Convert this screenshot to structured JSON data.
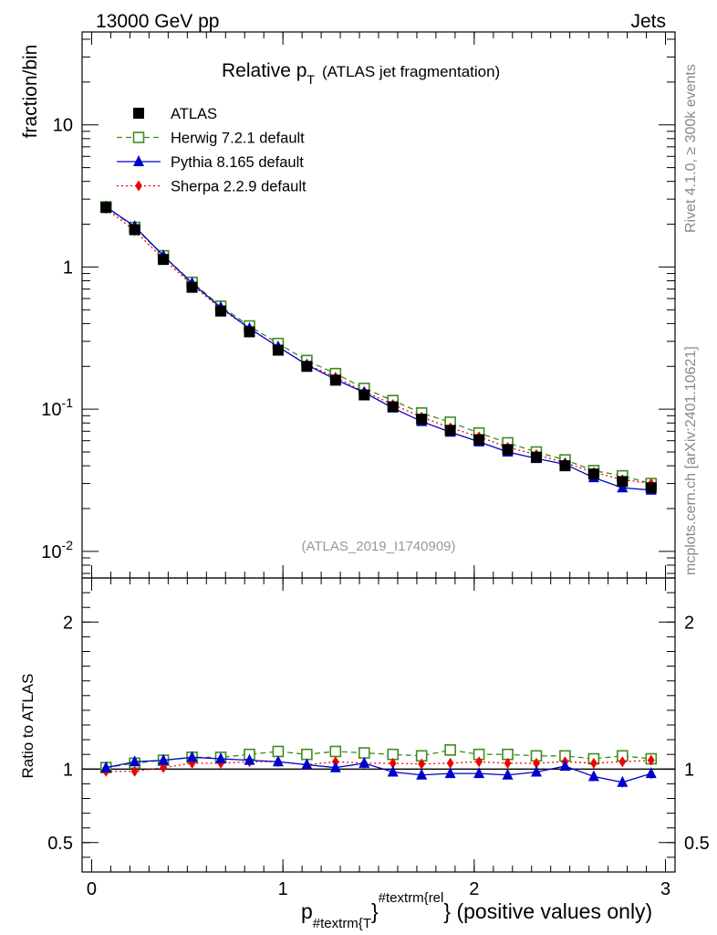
{
  "header": {
    "energy_label": "13000 GeV pp",
    "category_label": "Jets"
  },
  "side_labels": {
    "rivet": "Rivet 4.1.0, ≥ 300k events",
    "mcplots": "mcplots.cern.ch [arXiv:2401.10621]"
  },
  "chart_data": {
    "type": "line",
    "title_main": "Relative p",
    "title_sub": "T",
    "title_extra": "(ATLAS jet fragmentation)",
    "analysis_id": "(ATLAS_2019_I1740909)",
    "ylabel": "fraction/bin",
    "ratio_ylabel": "Ratio to ATLAS",
    "xlabel_p": "p",
    "xlabel_sub": "#textrm{T",
    "xlabel_brace": "}",
    "xlabel_sup": "#textrm{rel",
    "xlabel_rest": "} (positive values only)",
    "xlim": [
      -0.05,
      3.05
    ],
    "ylim_log": [
      0.0065,
      45
    ],
    "ratio_ylim": [
      0.3,
      2.3
    ],
    "x_ticks": [
      "0",
      "1",
      "2",
      "3"
    ],
    "y_ticks": [
      {
        "base": "10",
        "exp": "-2"
      },
      {
        "base": "10",
        "exp": "-1"
      },
      {
        "base": "1",
        "exp": ""
      },
      {
        "base": "10",
        "exp": ""
      }
    ],
    "ratio_ticks": [
      "0.5",
      "1",
      "2"
    ],
    "x": [
      0.075,
      0.225,
      0.375,
      0.525,
      0.675,
      0.825,
      0.975,
      1.125,
      1.275,
      1.425,
      1.575,
      1.725,
      1.875,
      2.025,
      2.175,
      2.325,
      2.475,
      2.625,
      2.775,
      2.925
    ],
    "series": [
      {
        "name": "ATLAS",
        "color": "#000000",
        "style": "data",
        "values": [
          2.62,
          1.83,
          1.13,
          0.72,
          0.49,
          0.35,
          0.26,
          0.2,
          0.16,
          0.126,
          0.104,
          0.085,
          0.071,
          0.061,
          0.052,
          0.046,
          0.04,
          0.035,
          0.031,
          0.028
        ],
        "ratio": [
          1,
          1,
          1,
          1,
          1,
          1,
          1,
          1,
          1,
          1,
          1,
          1,
          1,
          1,
          1,
          1,
          1,
          1,
          1,
          1
        ]
      },
      {
        "name": "Herwig 7.2.1 default",
        "color": "#3d8c1f",
        "style": "dashed-square",
        "values": [
          2.65,
          1.9,
          1.2,
          0.78,
          0.53,
          0.385,
          0.29,
          0.22,
          0.178,
          0.14,
          0.115,
          0.094,
          0.081,
          0.068,
          0.058,
          0.05,
          0.044,
          0.037,
          0.034,
          0.03
        ],
        "ratio": [
          1.01,
          1.04,
          1.06,
          1.08,
          1.08,
          1.1,
          1.12,
          1.1,
          1.12,
          1.11,
          1.1,
          1.09,
          1.13,
          1.1,
          1.1,
          1.09,
          1.09,
          1.07,
          1.09,
          1.07
        ]
      },
      {
        "name": "Pythia 8.165 default",
        "color": "#0000cc",
        "style": "solid-triangle",
        "values": [
          2.65,
          1.93,
          1.2,
          0.77,
          0.52,
          0.37,
          0.275,
          0.205,
          0.162,
          0.131,
          0.102,
          0.082,
          0.069,
          0.059,
          0.05,
          0.045,
          0.041,
          0.033,
          0.028,
          0.027
        ],
        "ratio": [
          1.01,
          1.05,
          1.06,
          1.08,
          1.07,
          1.06,
          1.05,
          1.03,
          1.01,
          1.04,
          0.98,
          0.96,
          0.97,
          0.97,
          0.96,
          0.98,
          1.02,
          0.95,
          0.91,
          0.97
        ],
        "ratio_err": [
          0.005,
          0.008,
          0.008,
          0.01,
          0.01,
          0.012,
          0.012,
          0.013,
          0.015,
          0.015,
          0.017,
          0.018,
          0.02,
          0.022,
          0.024,
          0.026,
          0.028,
          0.032,
          0.035,
          0.035
        ]
      },
      {
        "name": "Sherpa 2.2.9 default",
        "color": "#ee0000",
        "style": "dotted-diamond",
        "values": [
          2.58,
          1.8,
          1.14,
          0.75,
          0.51,
          0.37,
          0.275,
          0.206,
          0.168,
          0.133,
          0.108,
          0.088,
          0.074,
          0.064,
          0.054,
          0.048,
          0.042,
          0.036,
          0.032,
          0.03
        ],
        "ratio": [
          0.985,
          0.985,
          1.01,
          1.04,
          1.04,
          1.05,
          1.05,
          1.03,
          1.05,
          1.04,
          1.04,
          1.035,
          1.04,
          1.05,
          1.04,
          1.04,
          1.05,
          1.04,
          1.05,
          1.06
        ],
        "ratio_err": [
          0.005,
          0.006,
          0.007,
          0.008,
          0.009,
          0.01,
          0.01,
          0.011,
          0.012,
          0.012,
          0.013,
          0.014,
          0.015,
          0.016,
          0.017,
          0.018,
          0.019,
          0.02,
          0.021,
          0.022
        ]
      }
    ]
  }
}
